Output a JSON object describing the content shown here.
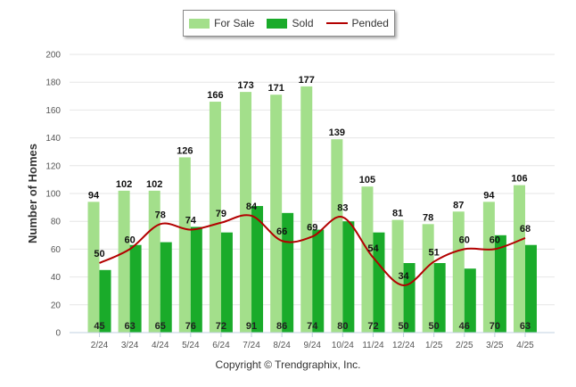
{
  "legend": {
    "for_sale": "For Sale",
    "sold": "Sold",
    "pended": "Pended"
  },
  "copyright": "Copyright © Trendgraphix, Inc.",
  "colors": {
    "for_sale": "#a3df8b",
    "sold": "#1aab2a",
    "pended": "#b30000",
    "grid": "#e6e6e6"
  },
  "chart_data": {
    "type": "bar",
    "ylabel": "Number of Homes",
    "ylim": [
      0,
      200
    ],
    "yticks": [
      0,
      20,
      40,
      60,
      80,
      100,
      120,
      140,
      160,
      180,
      200
    ],
    "grid": true,
    "legend_position": "top-center",
    "categories": [
      "2/24",
      "3/24",
      "4/24",
      "5/24",
      "6/24",
      "7/24",
      "8/24",
      "9/24",
      "10/24",
      "11/24",
      "12/24",
      "1/25",
      "2/25",
      "3/25",
      "4/25"
    ],
    "series": [
      {
        "name": "For Sale",
        "type": "bar",
        "values": [
          94,
          102,
          102,
          126,
          166,
          173,
          171,
          177,
          139,
          105,
          81,
          78,
          87,
          94,
          106
        ]
      },
      {
        "name": "Sold",
        "type": "bar",
        "values": [
          45,
          63,
          65,
          76,
          72,
          91,
          86,
          74,
          80,
          72,
          50,
          50,
          46,
          70,
          63
        ]
      },
      {
        "name": "Pended",
        "type": "line",
        "values": [
          50,
          60,
          78,
          74,
          79,
          84,
          66,
          69,
          83,
          54,
          34,
          51,
          60,
          60,
          68
        ]
      }
    ]
  }
}
